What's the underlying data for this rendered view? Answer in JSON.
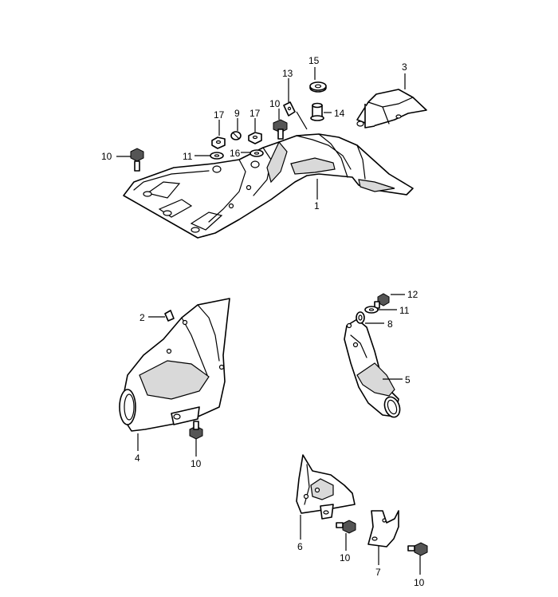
{
  "callouts": {
    "c15": "15",
    "c3": "3",
    "c13": "13",
    "c10_top": "10",
    "c14": "14",
    "c17_left": "17",
    "c9": "9",
    "c17_right": "17",
    "c10_left": "10",
    "c11_top": "11",
    "c16": "16",
    "c1": "1",
    "c12": "12",
    "c11_right": "11",
    "c8": "8",
    "c2": "2",
    "c5": "5",
    "c4": "4",
    "c10_mid": "10",
    "c6": "6",
    "c10_bot1": "10",
    "c7": "7",
    "c10_bot2": "10"
  }
}
